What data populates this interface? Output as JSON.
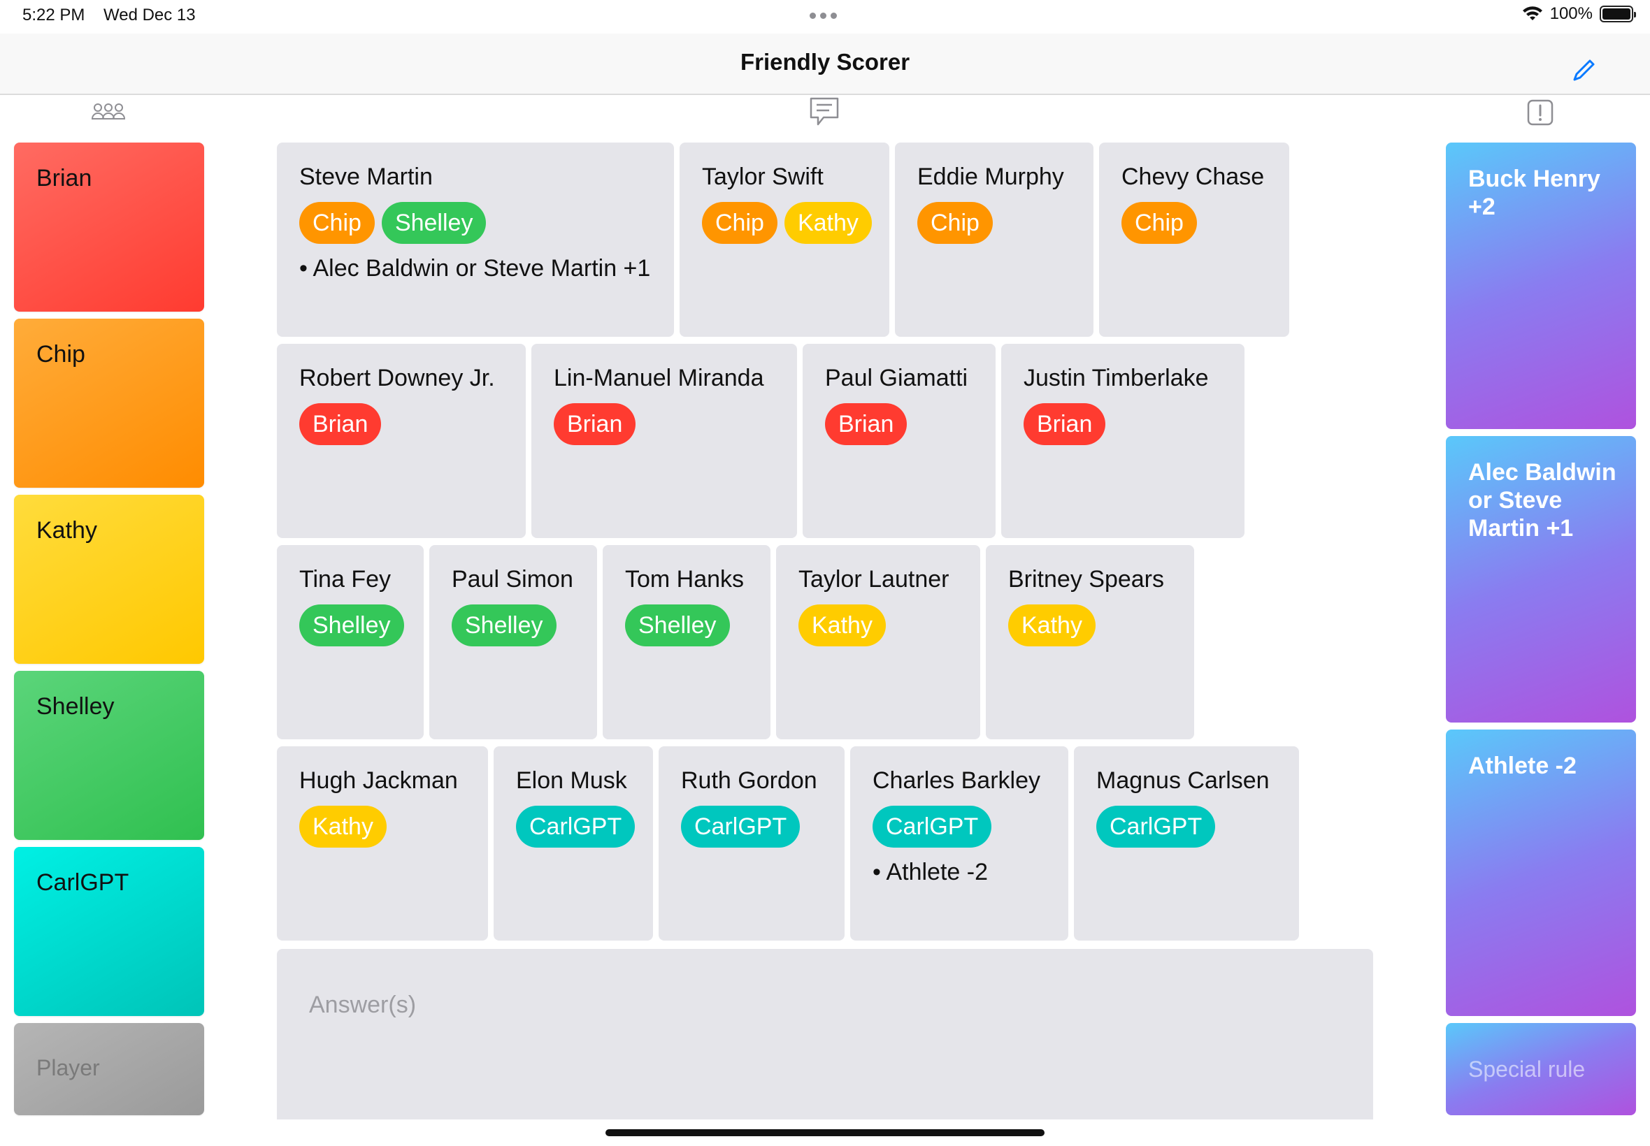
{
  "status": {
    "time": "5:22 PM",
    "date": "Wed Dec 13",
    "battery": "100%",
    "wifi_icon": "wifi-icon"
  },
  "nav": {
    "title": "Friendly Scorer",
    "edit_icon": "pencil-icon"
  },
  "column_icons": {
    "players": "people-icon",
    "answers": "speech-bubble-icon",
    "rules": "exclamation-box-icon"
  },
  "colors": {
    "Brian": "#ff3b30",
    "Chip": "#ff9500",
    "Kathy": "#ffcc00",
    "Shelley": "#34c759",
    "CarlGPT": "#00c7be",
    "card": "#e5e5ea"
  },
  "players": [
    {
      "name": "Brian"
    },
    {
      "name": "Chip"
    },
    {
      "name": "Kathy"
    },
    {
      "name": "Shelley"
    },
    {
      "name": "CarlGPT"
    }
  ],
  "player_placeholder": "Player",
  "answers": [
    {
      "name": "Steve Martin",
      "chips": [
        "Chip",
        "Shelley"
      ],
      "notes": [
        "• Alec Baldwin or Steve Martin +1"
      ]
    },
    {
      "name": "Taylor Swift",
      "chips": [
        "Chip",
        "Kathy"
      ],
      "notes": []
    },
    {
      "name": "Eddie Murphy",
      "chips": [
        "Chip"
      ],
      "notes": []
    },
    {
      "name": "Chevy Chase",
      "chips": [
        "Chip"
      ],
      "notes": []
    },
    {
      "name": "Robert Downey Jr.",
      "chips": [
        "Brian"
      ],
      "notes": []
    },
    {
      "name": "Lin-Manuel Miranda",
      "chips": [
        "Brian"
      ],
      "notes": []
    },
    {
      "name": "Paul Giamatti",
      "chips": [
        "Brian"
      ],
      "notes": []
    },
    {
      "name": "Justin Timberlake",
      "chips": [
        "Brian"
      ],
      "notes": []
    },
    {
      "name": "Tina Fey",
      "chips": [
        "Shelley"
      ],
      "notes": []
    },
    {
      "name": "Paul Simon",
      "chips": [
        "Shelley"
      ],
      "notes": []
    },
    {
      "name": "Tom Hanks",
      "chips": [
        "Shelley"
      ],
      "notes": []
    },
    {
      "name": "Taylor Lautner",
      "chips": [
        "Kathy"
      ],
      "notes": []
    },
    {
      "name": "Britney Spears",
      "chips": [
        "Kathy"
      ],
      "notes": []
    },
    {
      "name": "Hugh Jackman",
      "chips": [
        "Kathy"
      ],
      "notes": []
    },
    {
      "name": "Elon Musk",
      "chips": [
        "CarlGPT"
      ],
      "notes": []
    },
    {
      "name": "Ruth Gordon",
      "chips": [
        "CarlGPT"
      ],
      "notes": []
    },
    {
      "name": "Charles Barkley",
      "chips": [
        "CarlGPT"
      ],
      "notes": [
        "• Athlete -2"
      ]
    },
    {
      "name": "Magnus Carlsen",
      "chips": [
        "CarlGPT"
      ],
      "notes": []
    }
  ],
  "answers_input": {
    "placeholder": "Answer(s)",
    "value": ""
  },
  "rules": [
    {
      "text": "Buck Henry +2"
    },
    {
      "text": "Alec Baldwin or Steve Martin +1"
    },
    {
      "text": "Athlete -2"
    }
  ],
  "rule_placeholder": "Special rule"
}
